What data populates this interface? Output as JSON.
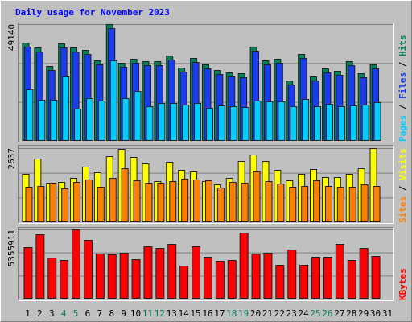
{
  "title": "Daily usage for November 2023",
  "chart_data": [
    {
      "type": "bar",
      "ylim": [
        0,
        49140
      ],
      "yticks": [
        49140
      ],
      "legend_separator": " / ",
      "series": [
        {
          "name": "Hits",
          "color": "#00805c",
          "values": [
            41346,
            39312,
            31518,
            41007,
            39312,
            38295,
            33890,
            49140,
            32873,
            34567,
            33551,
            33551,
            35923,
            30840,
            34906,
            32195,
            29823,
            28806,
            28467,
            39651,
            33890,
            34567,
            25417,
            36601,
            27112,
            30501,
            29484,
            33551,
            28467,
            32195,
            null
          ]
        },
        {
          "name": "Files",
          "color": "#1a3cf0",
          "values": [
            39651,
            37618,
            29823,
            39312,
            37618,
            36601,
            32195,
            47446,
            31179,
            32873,
            31857,
            31857,
            34229,
            29145,
            33212,
            30501,
            28128,
            27112,
            26773,
            37957,
            32195,
            32873,
            23723,
            34906,
            25417,
            28806,
            27790,
            31857,
            26773,
            30501,
            null
          ]
        },
        {
          "name": "Pages",
          "color": "#00ccff",
          "values": [
            21690,
            17284,
            17284,
            27112,
            13556,
            17962,
            16945,
            33890,
            17962,
            21012,
            14573,
            15928,
            15928,
            15250,
            15928,
            13895,
            14912,
            14573,
            14234,
            16945,
            16606,
            16606,
            14573,
            17623,
            14573,
            15589,
            14573,
            14912,
            15250,
            16267,
            null
          ]
        }
      ]
    },
    {
      "type": "bar",
      "ylim": [
        0,
        2637
      ],
      "yticks": [
        2637
      ],
      "legend_separator": " / ",
      "series": [
        {
          "name": "Visits",
          "color": "#ffff00",
          "values": [
            1720,
            2264,
            1404,
            1433,
            1576,
            1978,
            1777,
            2350,
            2608,
            2322,
            2092,
            1462,
            2150,
            1863,
            1806,
            1462,
            1347,
            1576,
            2178,
            2408,
            2178,
            1863,
            1490,
            1720,
            1892,
            1605,
            1605,
            1720,
            1920,
            2637,
            null
          ]
        },
        {
          "name": "Sites",
          "color": "#ff8000",
          "values": [
            1261,
            1290,
            1404,
            1204,
            1433,
            1519,
            1261,
            1576,
            1920,
            1490,
            1404,
            1404,
            1462,
            1548,
            1519,
            1490,
            1233,
            1433,
            1404,
            1806,
            1462,
            1376,
            1261,
            1290,
            1490,
            1290,
            1261,
            1261,
            1347,
            1290,
            null
          ]
        }
      ]
    },
    {
      "type": "bar",
      "ylim": [
        0,
        5355911
      ],
      "yticks": [
        5355911
      ],
      "categories": [
        "1",
        "2",
        "3",
        "4",
        "5",
        "6",
        "7",
        "8",
        "9",
        "10",
        "11",
        "12",
        "13",
        "14",
        "15",
        "16",
        "17",
        "18",
        "19",
        "20",
        "21",
        "22",
        "23",
        "24",
        "25",
        "26",
        "27",
        "28",
        "29",
        "30",
        "31"
      ],
      "category_colors": [
        "#000000",
        "#000000",
        "#000000",
        "#00805c",
        "#00805c",
        "#000000",
        "#000000",
        "#000000",
        "#000000",
        "#000000",
        "#00805c",
        "#00805c",
        "#000000",
        "#000000",
        "#000000",
        "#000000",
        "#000000",
        "#00805c",
        "#00805c",
        "#000000",
        "#000000",
        "#000000",
        "#000000",
        "#000000",
        "#00805c",
        "#00805c",
        "#000000",
        "#000000",
        "#000000",
        "#000000",
        "#000000"
      ],
      "series": [
        {
          "name": "KBytes",
          "color": "#ff0000",
          "values": [
            3985792,
            4982240,
            3176178,
            2989344,
            5355911,
            4546294,
            3487568,
            3425290,
            3549846,
            3051622,
            4048070,
            3923514,
            4234904,
            2553398,
            4048070,
            3238456,
            2927066,
            2989344,
            5106796,
            3487568,
            3549846,
            2615676,
            3798958,
            2615676,
            3238456,
            3238456,
            4234904,
            2989344,
            3923514,
            3300734,
            null
          ]
        }
      ]
    }
  ]
}
